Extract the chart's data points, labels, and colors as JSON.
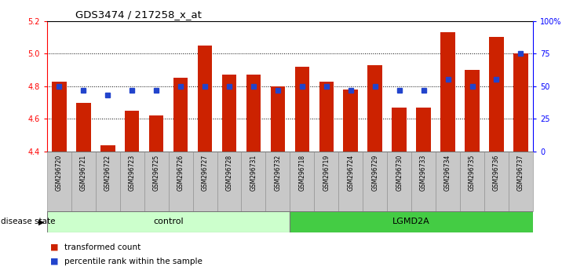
{
  "title": "GDS3474 / 217258_x_at",
  "samples": [
    "GSM296720",
    "GSM296721",
    "GSM296722",
    "GSM296723",
    "GSM296725",
    "GSM296726",
    "GSM296727",
    "GSM296728",
    "GSM296731",
    "GSM296732",
    "GSM296718",
    "GSM296719",
    "GSM296724",
    "GSM296729",
    "GSM296730",
    "GSM296733",
    "GSM296734",
    "GSM296735",
    "GSM296736",
    "GSM296737"
  ],
  "bar_values": [
    4.83,
    4.7,
    4.44,
    4.65,
    4.62,
    4.85,
    5.05,
    4.87,
    4.87,
    4.8,
    4.92,
    4.83,
    4.78,
    4.93,
    4.67,
    4.67,
    5.13,
    4.9,
    5.1,
    5.0
  ],
  "dot_pcts": [
    50,
    47,
    43,
    47,
    47,
    50,
    50,
    50,
    50,
    47,
    50,
    50,
    47,
    50,
    47,
    47,
    55,
    50,
    55,
    75
  ],
  "control_count": 10,
  "ylim_left": [
    4.4,
    5.2
  ],
  "ylim_right": [
    0,
    100
  ],
  "yticks_left": [
    4.4,
    4.6,
    4.8,
    5.0,
    5.2
  ],
  "yticks_right": [
    0,
    25,
    50,
    75,
    100
  ],
  "ytick_labels_right": [
    "0",
    "25",
    "50",
    "75",
    "100%"
  ],
  "grid_values": [
    4.6,
    4.8,
    5.0
  ],
  "bar_color": "#cc2200",
  "dot_color": "#2244cc",
  "control_fill": "#ccffcc",
  "lgmd_fill": "#44cc44",
  "label_bg": "#c8c8c8",
  "disease_state_text": "disease state",
  "control_text": "control",
  "lgmd_text": "LGMD2A",
  "legend_bar": "transformed count",
  "legend_dot": "percentile rank within the sample"
}
